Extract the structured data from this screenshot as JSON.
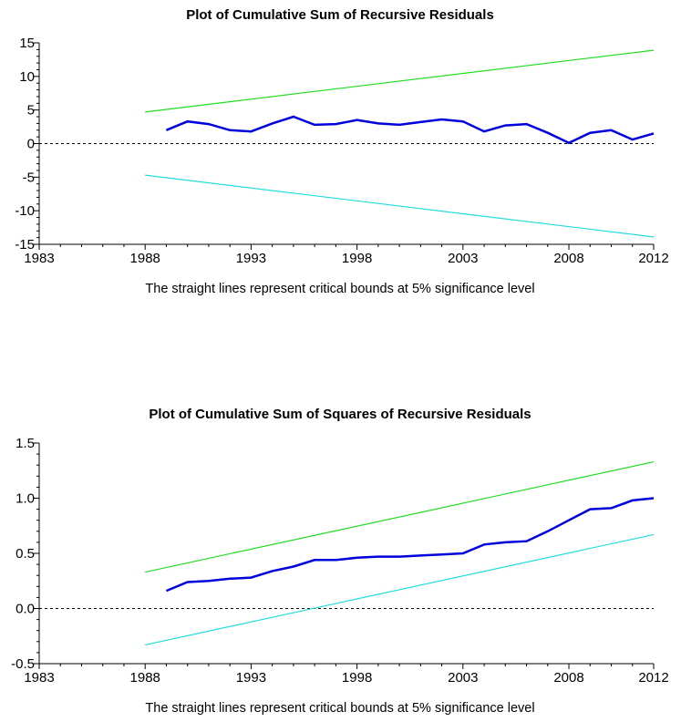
{
  "chart_data": [
    {
      "type": "line",
      "title": "Plot of Cumulative Sum of Recursive Residuals",
      "note": "The straight lines represent critical bounds at 5% significance level",
      "xlim": [
        1983,
        2012
      ],
      "ylim": [
        -15,
        15
      ],
      "x_ticks": [
        1983,
        1988,
        1993,
        1998,
        2003,
        2008,
        2012
      ],
      "y_ticks": [
        15,
        10,
        5,
        0,
        -5,
        -10,
        -15
      ],
      "y_tick_labels": [
        "15",
        "10",
        "5",
        "0",
        "-5",
        "-10",
        "-15"
      ],
      "zero_line": "dashed",
      "grid": false,
      "colors": {
        "series": "#0000dd",
        "upper": "#22dd22",
        "lower": "#22dddd"
      },
      "series": [
        {
          "x": [
            1989,
            1990,
            1991,
            1992,
            1993,
            1994,
            1995,
            1996,
            1997,
            1998,
            1999,
            2000,
            2001,
            2002,
            2003,
            2004,
            2005,
            2006,
            2007,
            2008,
            2009,
            2010,
            2011,
            2012
          ],
          "values": [
            2.0,
            3.3,
            2.9,
            2.0,
            1.8,
            3.0,
            4.0,
            2.8,
            2.9,
            3.5,
            3.0,
            2.8,
            3.2,
            3.6,
            3.3,
            1.8,
            2.7,
            2.9,
            1.6,
            0.1,
            1.6,
            2.0,
            0.6,
            1.5
          ]
        },
        {
          "x": [
            1988,
            2012
          ],
          "values": [
            4.7,
            13.9
          ]
        },
        {
          "x": [
            1988,
            2012
          ],
          "values": [
            -4.7,
            -13.9
          ]
        }
      ]
    },
    {
      "type": "line",
      "title": "Plot of Cumulative Sum of Squares of Recursive Residuals",
      "note": "The straight lines represent critical bounds at 5% significance level",
      "xlim": [
        1983,
        2012
      ],
      "ylim": [
        -0.5,
        1.5
      ],
      "x_ticks": [
        1983,
        1988,
        1993,
        1998,
        2003,
        2008,
        2012
      ],
      "y_ticks": [
        1.5,
        1.0,
        0.5,
        0.0,
        -0.5
      ],
      "y_tick_labels": [
        "1.5",
        "1.0",
        "0.5",
        "0.0",
        "-0.5"
      ],
      "zero_line": "dashed",
      "grid": false,
      "colors": {
        "series": "#0000dd",
        "upper": "#22dd22",
        "lower": "#22dddd"
      },
      "series": [
        {
          "x": [
            1989,
            1990,
            1991,
            1992,
            1993,
            1994,
            1995,
            1996,
            1997,
            1998,
            1999,
            2000,
            2001,
            2002,
            2003,
            2004,
            2005,
            2006,
            2007,
            2008,
            2009,
            2010,
            2011,
            2012
          ],
          "values": [
            0.16,
            0.24,
            0.25,
            0.27,
            0.28,
            0.34,
            0.38,
            0.44,
            0.44,
            0.46,
            0.47,
            0.47,
            0.48,
            0.49,
            0.5,
            0.58,
            0.6,
            0.61,
            0.7,
            0.8,
            0.9,
            0.91,
            0.98,
            1.0
          ]
        },
        {
          "x": [
            1988,
            2012
          ],
          "values": [
            0.33,
            1.33
          ]
        },
        {
          "x": [
            1988,
            2012
          ],
          "values": [
            -0.33,
            0.67
          ]
        }
      ]
    }
  ]
}
